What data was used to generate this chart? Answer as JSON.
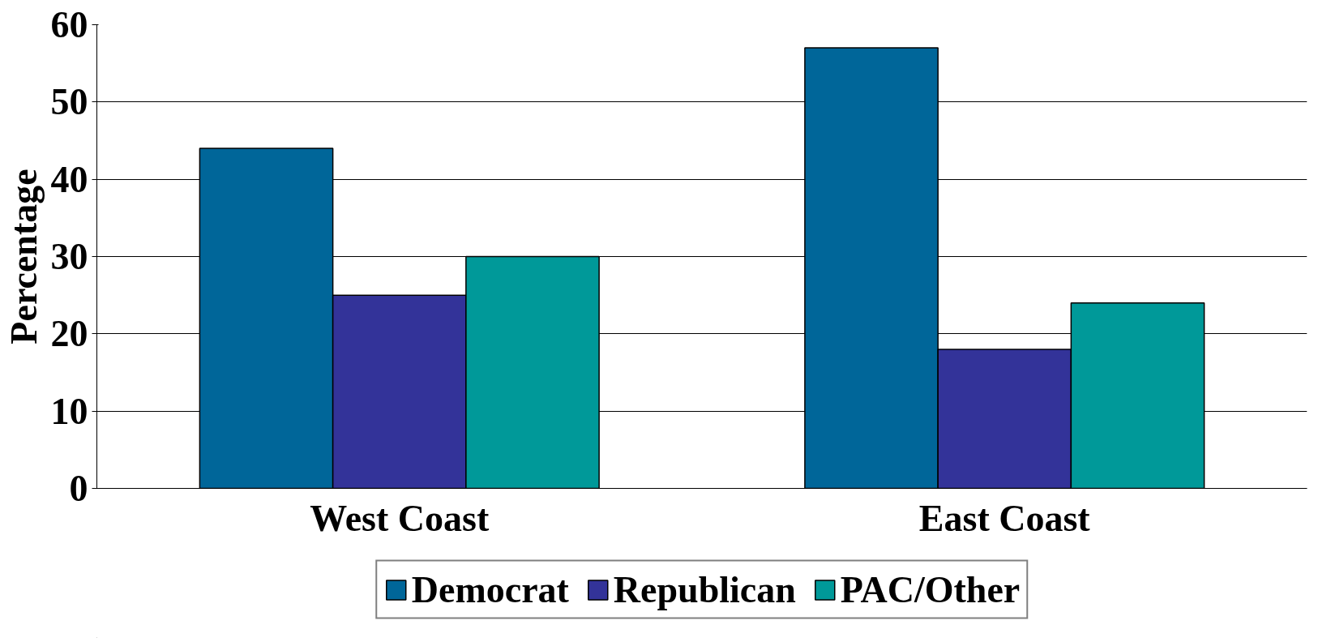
{
  "chart_data": {
    "type": "bar",
    "ylabel": "Percentage",
    "categories": [
      "West Coast",
      "East Coast"
    ],
    "series": [
      {
        "name": "Democrat",
        "color": "#006699",
        "values": [
          44,
          57
        ]
      },
      {
        "name": "Republican",
        "color": "#333399",
        "values": [
          25,
          18
        ]
      },
      {
        "name": "PAC/Other",
        "color": "#009999",
        "values": [
          30,
          24
        ]
      }
    ],
    "ylim": [
      0,
      60
    ],
    "yticks": [
      0,
      10,
      20,
      30,
      40,
      50,
      60
    ],
    "grid": "y",
    "legend": "bottom"
  }
}
